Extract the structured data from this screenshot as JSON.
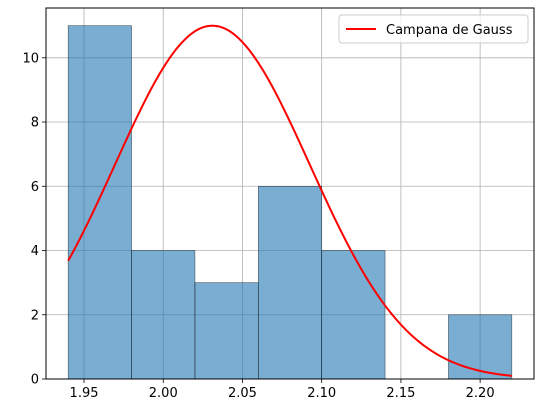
{
  "chart_data": {
    "type": "bar",
    "title": "",
    "xlabel": "",
    "ylabel": "",
    "xlim": [
      1.926,
      2.234
    ],
    "ylim": [
      0,
      11.55
    ],
    "grid": true,
    "legend_position": "top-right",
    "x_ticks": [
      1.95,
      2.0,
      2.05,
      2.1,
      2.15,
      2.2
    ],
    "x_tick_labels": [
      "1.95",
      "2.00",
      "2.05",
      "2.10",
      "2.15",
      "2.20"
    ],
    "y_ticks": [
      0,
      2,
      4,
      6,
      8,
      10
    ],
    "y_tick_labels": [
      "0",
      "2",
      "4",
      "6",
      "8",
      "10"
    ],
    "histogram": {
      "bin_edges": [
        1.94,
        1.98,
        2.02,
        2.06,
        2.1,
        2.14,
        2.18,
        2.22
      ],
      "counts": [
        11,
        4,
        3,
        6,
        4,
        0,
        2
      ],
      "color": "#1f77b4",
      "alpha": 0.6
    },
    "series": [
      {
        "name": "Campana de Gauss",
        "type": "line",
        "color": "#ff0000",
        "curve": {
          "peak": 11,
          "mean": 2.031,
          "std": 0.0615,
          "x_range": [
            1.94,
            2.22
          ]
        }
      }
    ]
  }
}
